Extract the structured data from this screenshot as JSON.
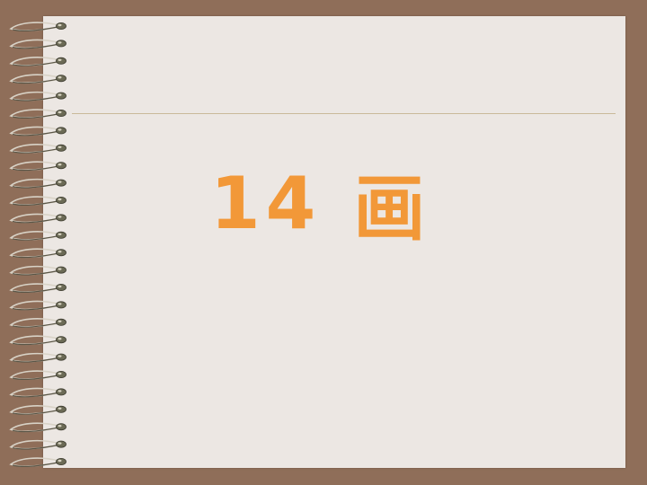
{
  "slide": {
    "number_text": "14",
    "character_text": "画"
  },
  "colors": {
    "frame": "#8f6e59",
    "paper": "#ece7e3",
    "title": "#f29838",
    "rule": "#c9b99a",
    "ring": "#6b6a55"
  },
  "icons": {
    "binding": "spiral-binding-icon"
  }
}
